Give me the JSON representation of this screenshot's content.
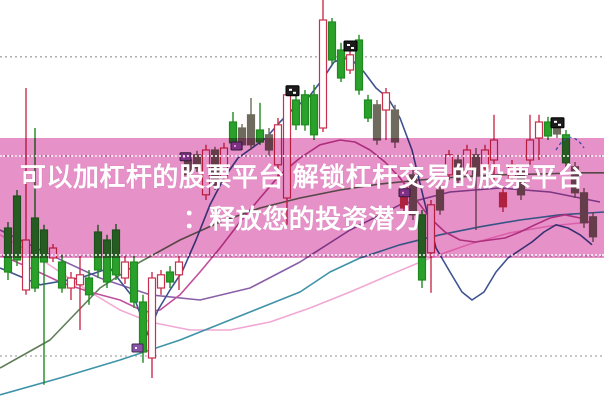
{
  "banner": {
    "line1": "可以加杠杆的股票平台 解锁杠杆交易的股票平台",
    "line2": "：释放您的投资潜力",
    "bg_color": "#e791c9",
    "text_color": "#ffffff"
  },
  "colors": {
    "background": "#ffffff",
    "gridline": "#a6a6a6",
    "candle_up_stroke": "#c9304e",
    "candle_down_fill": "#2aa12a",
    "candle_down_stroke": "#1f8a1f",
    "candle_gray_fill": "#6f6a5e",
    "candle_red_solid_fill": "#c03a50",
    "marker_black": "#1c1c1c",
    "marker_purple": "#8a55a8",
    "arc_blue": "#4a7fd4"
  },
  "chart_data": {
    "type": "candlestick",
    "title": "",
    "note": "No axis labels are visible in the image; o/h/l/c values are relative estimates on a 0-100 scale (0 = bottom of image, 100 = top).",
    "value_range": [
      0,
      100
    ],
    "x_range": [
      0,
      604
    ],
    "grid": "horizontal-dotted",
    "gridline_values": [
      85.8,
      61,
      36,
      11
    ],
    "candle_kinds_legend": {
      "up": "hollow red (rise)",
      "down": "solid green (fall)",
      "gray": "muted solid body seen through banner",
      "red-solid": "solid red/magenta small body"
    },
    "candles": [
      [
        8,
        43,
        44.5,
        30,
        32,
        "down"
      ],
      [
        17,
        51,
        52.5,
        33.5,
        35,
        "down"
      ],
      [
        26,
        27.5,
        78,
        26.3,
        40,
        "up"
      ],
      [
        35,
        45.5,
        68,
        27,
        28,
        "down"
      ],
      [
        44,
        42.5,
        43.8,
        3.8,
        34.5,
        "down"
      ],
      [
        53,
        35.5,
        39,
        34.5,
        38,
        "up"
      ],
      [
        62,
        34.5,
        36.3,
        26.8,
        28,
        "down"
      ],
      [
        71,
        28,
        32,
        25,
        30.5,
        "up"
      ],
      [
        80,
        28.8,
        36.3,
        17.5,
        31.3,
        "up"
      ],
      [
        89,
        30.5,
        32.5,
        23.8,
        26.3,
        "down"
      ],
      [
        98,
        42,
        43.8,
        30.5,
        32.5,
        "down"
      ],
      [
        107,
        40,
        41.3,
        28,
        29.5,
        "down"
      ],
      [
        116,
        42.5,
        44,
        30,
        31.3,
        "down"
      ],
      [
        125,
        30.5,
        36,
        29,
        34.5,
        "up"
      ],
      [
        134,
        34.5,
        36,
        23,
        24.5,
        "down"
      ],
      [
        143,
        24.5,
        26.3,
        9.3,
        12,
        "down"
      ],
      [
        152,
        10.5,
        32,
        5.5,
        30.5,
        "up"
      ],
      [
        161,
        28,
        32.5,
        26.3,
        31.3,
        "up"
      ],
      [
        170,
        32,
        33.5,
        28,
        29.5,
        "down"
      ],
      [
        179,
        31.3,
        36,
        27.5,
        34.5,
        "up"
      ],
      [
        188,
        60,
        61.3,
        55,
        56.3,
        "gray"
      ],
      [
        197,
        61.3,
        62.3,
        57,
        58,
        "gray"
      ],
      [
        206,
        51.3,
        63.8,
        50,
        62.5,
        "up"
      ],
      [
        215,
        62.5,
        63.3,
        52.5,
        53.8,
        "gray"
      ],
      [
        224,
        55.5,
        64.3,
        54.5,
        63,
        "up"
      ],
      [
        233,
        69.5,
        72,
        63,
        64.3,
        "down"
      ],
      [
        242,
        68,
        69,
        62.5,
        63.8,
        "gray"
      ],
      [
        251,
        71.3,
        75.5,
        62.5,
        63.8,
        "gray"
      ],
      [
        260,
        67.5,
        74.3,
        63.8,
        64.5,
        "down"
      ],
      [
        269,
        66.3,
        68,
        61,
        62.5,
        "gray"
      ],
      [
        278,
        58.8,
        70.5,
        55,
        68.8,
        "up"
      ],
      [
        287,
        50.5,
        78,
        43.8,
        76.3,
        "up"
      ],
      [
        296,
        75,
        76.5,
        67.5,
        68.8,
        "down"
      ],
      [
        305,
        76.3,
        77.5,
        67.3,
        68.8,
        "down"
      ],
      [
        314,
        76.3,
        78.8,
        65,
        66.3,
        "down"
      ],
      [
        323,
        68,
        100,
        67,
        95,
        "up"
      ],
      [
        332,
        94.5,
        95.5,
        83.8,
        85,
        "down"
      ],
      [
        341,
        87.5,
        89.3,
        79.5,
        80.5,
        "down"
      ],
      [
        350,
        82.5,
        87.5,
        81.5,
        86.3,
        "up"
      ],
      [
        359,
        90,
        91.3,
        76.3,
        77.5,
        "down"
      ],
      [
        368,
        75,
        76.3,
        69.5,
        70.5,
        "down"
      ],
      [
        377,
        73.8,
        75,
        63.8,
        65,
        "gray"
      ],
      [
        386,
        72.5,
        78,
        65,
        76.8,
        "up"
      ],
      [
        395,
        72.5,
        73.8,
        63,
        64.5,
        "gray"
      ],
      [
        404,
        51.3,
        52.5,
        47,
        48,
        "red-solid"
      ],
      [
        413,
        56.3,
        57.5,
        45,
        46.3,
        "gray"
      ],
      [
        422,
        46.3,
        47.5,
        28,
        30,
        "down"
      ],
      [
        431,
        36.8,
        50,
        26.8,
        48.8,
        "up"
      ],
      [
        440,
        52.5,
        53.8,
        46.3,
        47.5,
        "gray"
      ],
      [
        449,
        56.3,
        62.5,
        55,
        61.3,
        "up"
      ],
      [
        458,
        60,
        61.3,
        53.8,
        55,
        "gray"
      ],
      [
        467,
        57.5,
        63.8,
        56.3,
        62.5,
        "up"
      ],
      [
        476,
        61.3,
        63,
        42.5,
        56.3,
        "gray"
      ],
      [
        485,
        58,
        63.8,
        57,
        62.5,
        "up"
      ],
      [
        494,
        60,
        71.3,
        55,
        65,
        "up"
      ],
      [
        503,
        51.8,
        53,
        47,
        48.3,
        "red-solid"
      ],
      [
        512,
        55.5,
        60,
        54.3,
        58.8,
        "up"
      ],
      [
        521,
        57.5,
        58.8,
        50,
        51.3,
        "gray"
      ],
      [
        530,
        60,
        71.3,
        58.8,
        65,
        "up"
      ],
      [
        539,
        65.5,
        71.3,
        60,
        69.5,
        "up"
      ],
      [
        548,
        69.5,
        70.8,
        65,
        66,
        "down"
      ],
      [
        557,
        69,
        70,
        65.5,
        66.5,
        "gray"
      ],
      [
        566,
        66.3,
        67.5,
        58,
        59.3,
        "down"
      ],
      [
        575,
        58.3,
        59.5,
        50.5,
        51.8,
        "gray"
      ],
      [
        584,
        51.8,
        53,
        43,
        44.3,
        "gray"
      ],
      [
        593,
        45.8,
        47,
        39.5,
        40.8,
        "gray"
      ]
    ],
    "ma_lines": [
      {
        "name": "ma-pink",
        "color": "#f2a8d4",
        "points": [
          [
            0,
            41.3
          ],
          [
            30,
            37
          ],
          [
            60,
            32
          ],
          [
            90,
            27
          ],
          [
            120,
            22.5
          ],
          [
            150,
            19.5
          ],
          [
            190,
            17.5
          ],
          [
            230,
            17.5
          ],
          [
            270,
            19.5
          ],
          [
            310,
            23
          ],
          [
            350,
            27
          ],
          [
            390,
            31.3
          ],
          [
            430,
            35.5
          ],
          [
            470,
            39
          ],
          [
            510,
            41.8
          ],
          [
            550,
            43.5
          ],
          [
            590,
            44.5
          ]
        ]
      },
      {
        "name": "ma-violet",
        "color": "#8a5fa8",
        "points": [
          [
            0,
            42.5
          ],
          [
            50,
            36.3
          ],
          [
            100,
            30.5
          ],
          [
            150,
            26.3
          ],
          [
            200,
            25
          ],
          [
            250,
            28
          ],
          [
            300,
            34.5
          ],
          [
            350,
            42.5
          ],
          [
            400,
            48.8
          ],
          [
            450,
            52
          ],
          [
            500,
            53
          ],
          [
            550,
            52
          ],
          [
            600,
            49.5
          ]
        ]
      },
      {
        "name": "ma-olive",
        "color": "#5f7d57",
        "points": [
          [
            0,
            8
          ],
          [
            50,
            15
          ],
          [
            100,
            28
          ],
          [
            140,
            34.5
          ],
          [
            180,
            40
          ],
          [
            220,
            44.5
          ],
          [
            260,
            48
          ],
          [
            300,
            50.5
          ],
          [
            340,
            52.5
          ],
          [
            380,
            54
          ],
          [
            420,
            55
          ],
          [
            460,
            55.8
          ],
          [
            500,
            56.3
          ],
          [
            540,
            56.5
          ],
          [
            580,
            56.8
          ],
          [
            604,
            56.8
          ]
        ]
      },
      {
        "name": "ma-teal",
        "color": "#3e93a8",
        "points": [
          [
            0,
            1.3
          ],
          [
            60,
            5.5
          ],
          [
            120,
            10
          ],
          [
            180,
            15
          ],
          [
            240,
            21
          ],
          [
            300,
            27
          ],
          [
            330,
            32
          ],
          [
            360,
            35.5
          ],
          [
            400,
            38.8
          ],
          [
            440,
            41.3
          ],
          [
            480,
            43.3
          ],
          [
            520,
            45
          ],
          [
            560,
            46.3
          ],
          [
            604,
            47
          ]
        ]
      },
      {
        "name": "ma-magenta",
        "color": "#c0509e",
        "points": [
          [
            0,
            36.3
          ],
          [
            30,
            33
          ],
          [
            60,
            29.5
          ],
          [
            90,
            27
          ],
          [
            120,
            25
          ],
          [
            145,
            22
          ],
          [
            160,
            22.5
          ],
          [
            180,
            26.3
          ],
          [
            200,
            32
          ],
          [
            220,
            38
          ],
          [
            240,
            44.5
          ],
          [
            260,
            50.5
          ],
          [
            280,
            56.3
          ],
          [
            300,
            60.5
          ],
          [
            320,
            63.8
          ],
          [
            340,
            65
          ],
          [
            355,
            64.5
          ],
          [
            370,
            62.5
          ],
          [
            385,
            59.5
          ],
          [
            400,
            55.5
          ],
          [
            415,
            50.5
          ],
          [
            430,
            45.5
          ],
          [
            445,
            42
          ],
          [
            460,
            40
          ],
          [
            475,
            39.5
          ],
          [
            490,
            40
          ],
          [
            505,
            40.5
          ],
          [
            520,
            42
          ],
          [
            535,
            43.8
          ],
          [
            550,
            45.5
          ],
          [
            565,
            46.3
          ],
          [
            580,
            45.5
          ],
          [
            595,
            43.8
          ]
        ]
      },
      {
        "name": "ma-navy",
        "color": "#3e5490",
        "points": [
          [
            0,
            33
          ],
          [
            40,
            28.8
          ],
          [
            80,
            30.5
          ],
          [
            110,
            33
          ],
          [
            135,
            25
          ],
          [
            148,
            16.3
          ],
          [
            158,
            22.5
          ],
          [
            170,
            27.5
          ],
          [
            182,
            32
          ],
          [
            196,
            40
          ],
          [
            210,
            48.8
          ],
          [
            224,
            55.5
          ],
          [
            238,
            60.5
          ],
          [
            252,
            63
          ],
          [
            266,
            65.5
          ],
          [
            280,
            69.5
          ],
          [
            294,
            73
          ],
          [
            308,
            75.5
          ],
          [
            322,
            80
          ],
          [
            334,
            84.5
          ],
          [
            344,
            85.5
          ],
          [
            354,
            84.5
          ],
          [
            364,
            82
          ],
          [
            376,
            78
          ],
          [
            388,
            75.5
          ],
          [
            400,
            70.5
          ],
          [
            412,
            62.5
          ],
          [
            424,
            50
          ],
          [
            436,
            38
          ],
          [
            450,
            32
          ],
          [
            462,
            27
          ],
          [
            472,
            25
          ],
          [
            484,
            27
          ],
          [
            496,
            32
          ],
          [
            508,
            35.5
          ],
          [
            520,
            37.5
          ],
          [
            532,
            39.5
          ],
          [
            544,
            42
          ],
          [
            556,
            43.8
          ],
          [
            568,
            43
          ],
          [
            580,
            41.3
          ],
          [
            592,
            38.8
          ]
        ]
      }
    ],
    "markers": {
      "black": [
        [
          292,
          77.3
        ],
        [
          350,
          88.5
        ],
        [
          557,
          69.3
        ]
      ],
      "purple": [
        [
          137,
          13
        ],
        [
          185,
          60.8
        ],
        [
          236,
          63.5
        ],
        [
          404,
          51.8
        ]
      ]
    },
    "annotation_arc": {
      "x1": 556,
      "v1": 62.5,
      "xm": 570,
      "vm": 68.5,
      "x2": 584,
      "v2": 63
    }
  }
}
